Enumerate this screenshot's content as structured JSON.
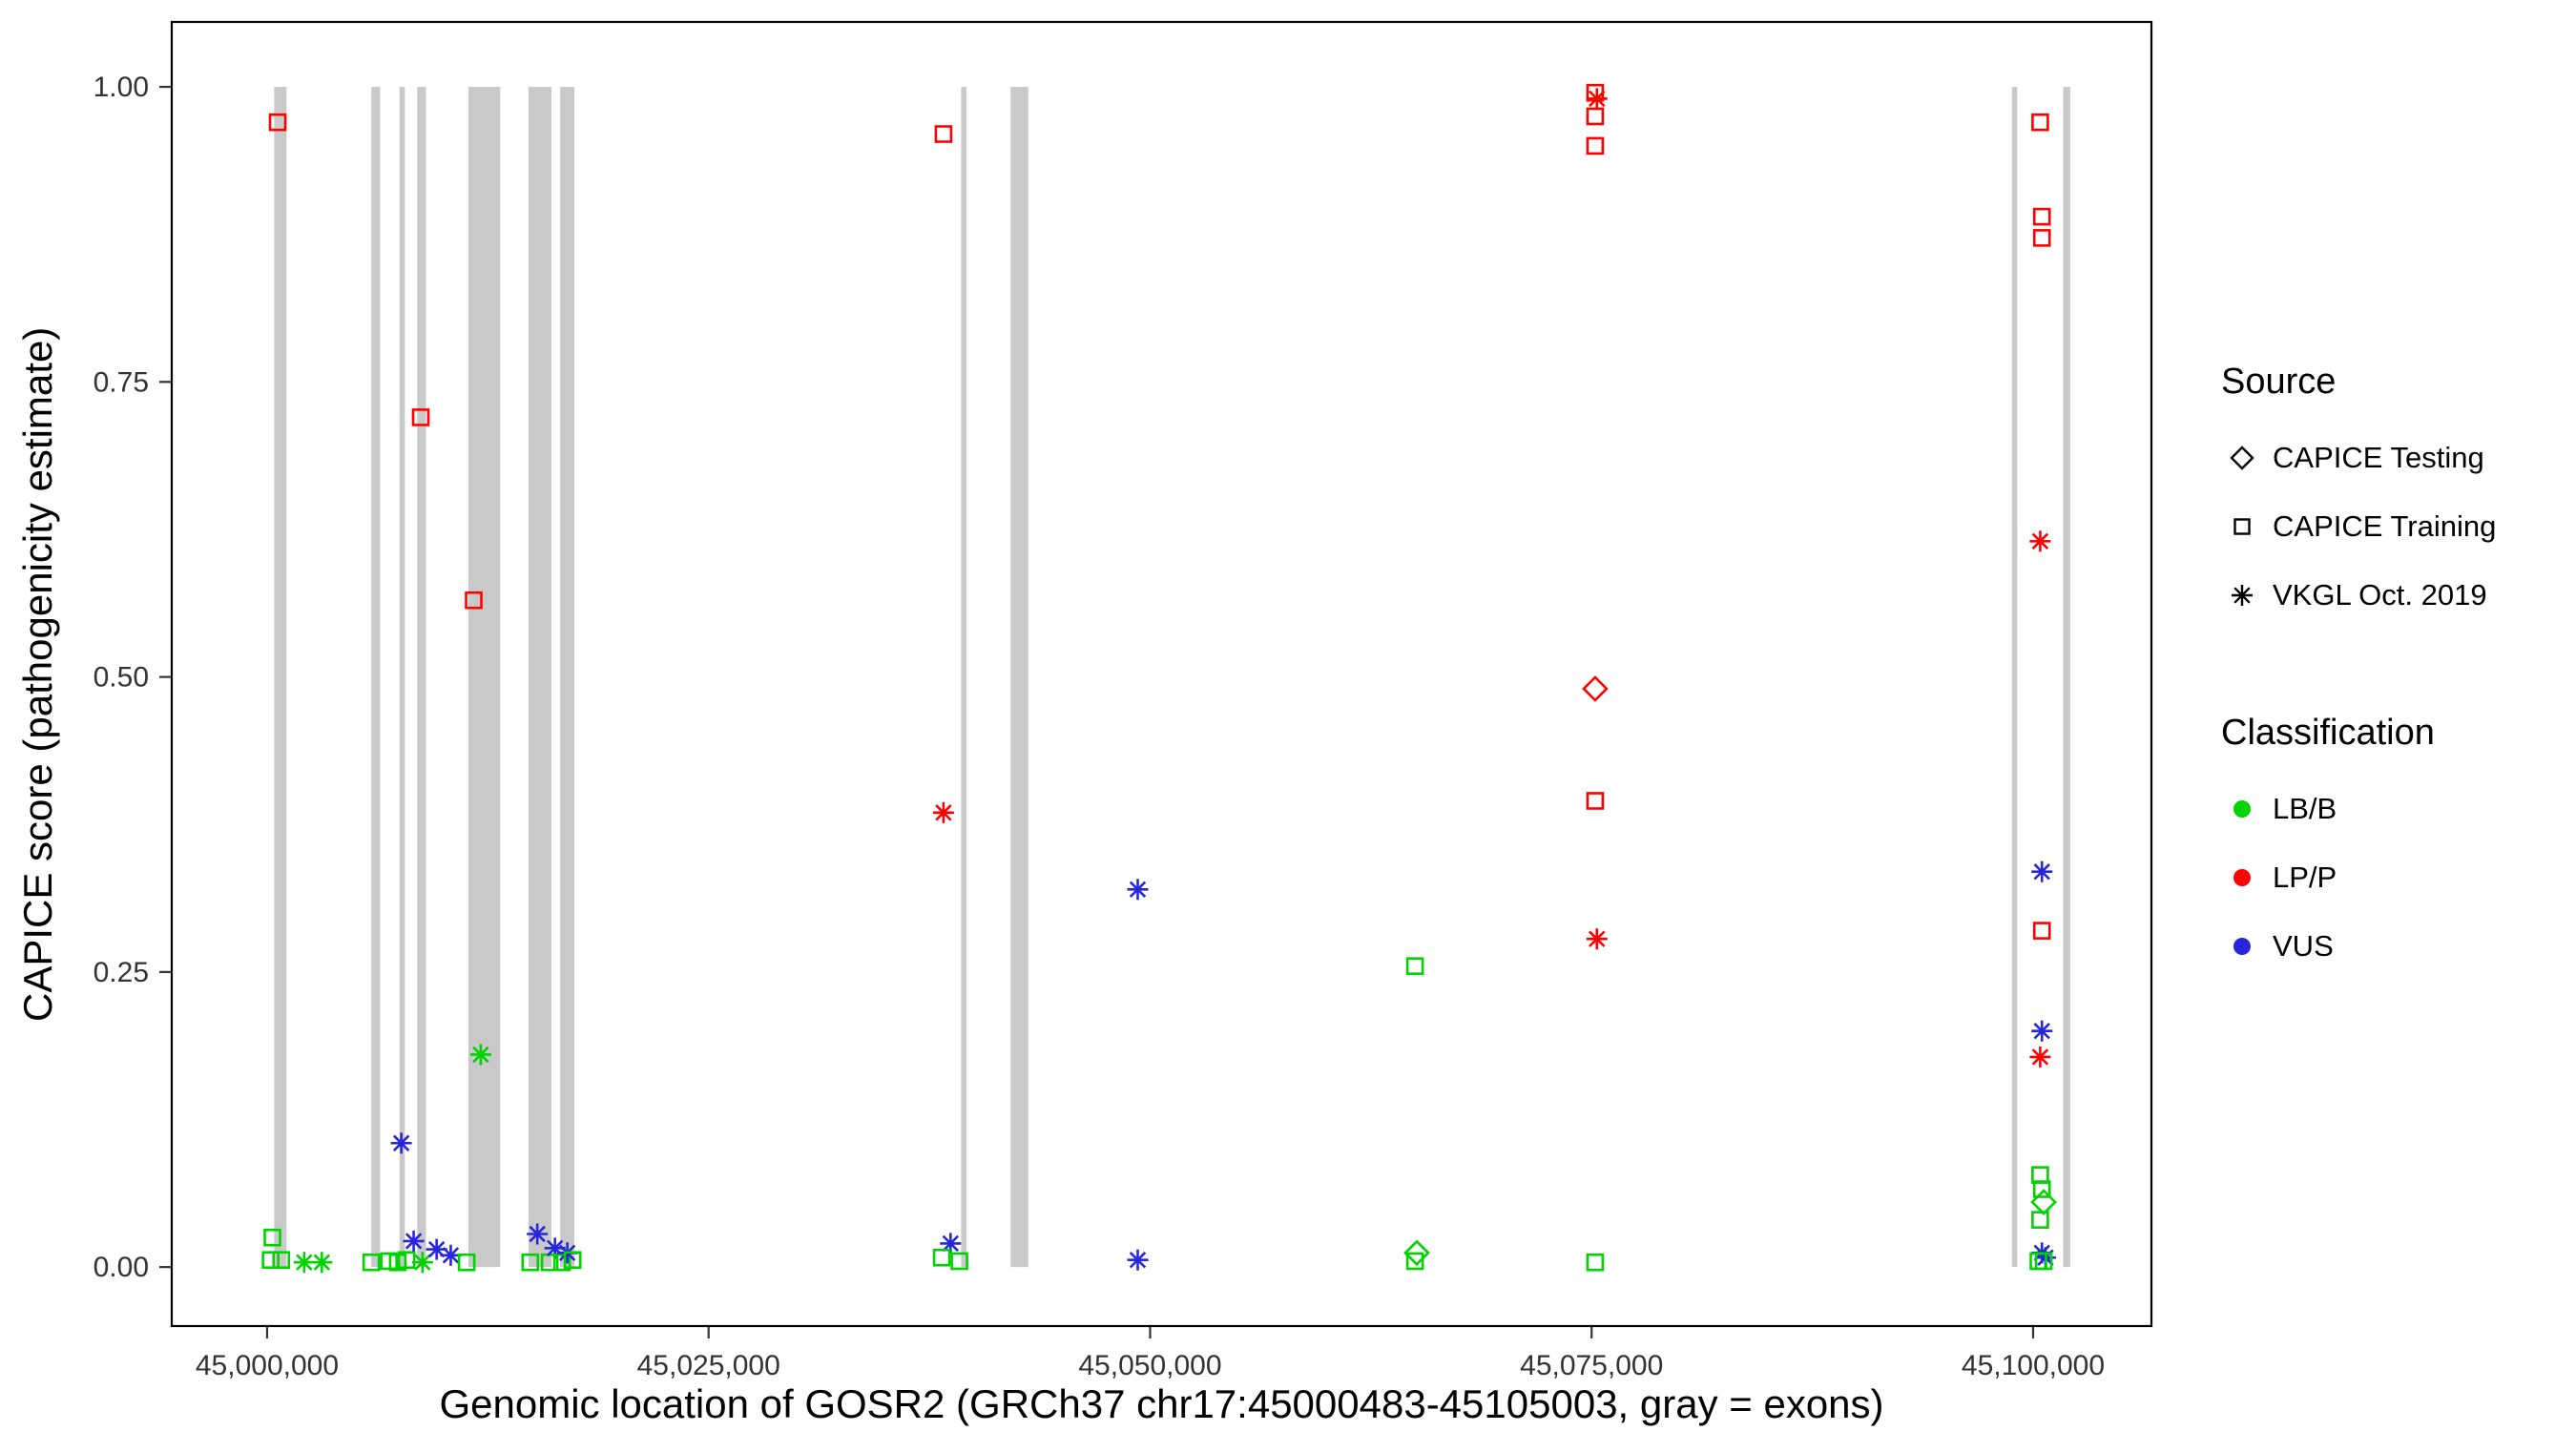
{
  "figure": {
    "background": "#FFFFFF",
    "panel_border_color": "#000000",
    "tick_text_color": "#333333"
  },
  "legend": {
    "source": {
      "title": "Source",
      "items": [
        {
          "label": "CAPICE Testing",
          "shape": "diamond"
        },
        {
          "label": "CAPICE Training",
          "shape": "square"
        },
        {
          "label": "VKGL Oct. 2019",
          "shape": "asterisk"
        }
      ]
    },
    "classification": {
      "title": "Classification",
      "items": [
        {
          "label": "LB/B",
          "color": "#00D300"
        },
        {
          "label": "LP/P",
          "color": "#FF0000"
        },
        {
          "label": "VUS",
          "color": "#2626DD"
        }
      ]
    }
  },
  "chart_data": {
    "type": "scatter",
    "title": "",
    "xlabel": "Genomic location of GOSR2 (GRCh37 chr17:45000483-45105003, gray = exons)",
    "ylabel": "CAPICE score (pathogenicity estimate)",
    "xlim": [
      44994600,
      45106700
    ],
    "ylim": [
      -0.05,
      1.055
    ],
    "x_ticks": [
      45000000,
      45025000,
      45050000,
      45075000,
      45100000
    ],
    "x_tick_labels": [
      "45,000,000",
      "45,025,000",
      "45,050,000",
      "45,075,000",
      "45,100,000"
    ],
    "y_ticks": [
      0.0,
      0.25,
      0.5,
      0.75,
      1.0
    ],
    "y_tick_labels": [
      "0.00",
      "0.25",
      "0.50",
      "0.75",
      "1.00"
    ],
    "grid": false,
    "legend_position": "right",
    "exon_color": "#C9C9C9",
    "exons": [
      [
        45000400,
        45001100
      ],
      [
        45005900,
        45006400
      ],
      [
        45007500,
        45007800
      ],
      [
        45008500,
        45009000
      ],
      [
        45011400,
        45013200
      ],
      [
        45014800,
        45016100
      ],
      [
        45016600,
        45017400
      ],
      [
        45039300,
        45039600
      ],
      [
        45042100,
        45043100
      ],
      [
        45098800,
        45099100
      ],
      [
        45101700,
        45102100
      ]
    ],
    "colors": {
      "LB/B": "#00D300",
      "LP/P": "#FF0000",
      "VUS": "#2626DD"
    },
    "shapes": {
      "CAPICE Testing": "diamond",
      "CAPICE Training": "square",
      "VKGL Oct. 2019": "asterisk"
    },
    "points": [
      {
        "x": 45000600,
        "y": 0.97,
        "source": "CAPICE Training",
        "classification": "LP/P"
      },
      {
        "x": 45000300,
        "y": 0.025,
        "source": "CAPICE Training",
        "classification": "LB/B"
      },
      {
        "x": 45000200,
        "y": 0.006,
        "source": "CAPICE Training",
        "classification": "LB/B"
      },
      {
        "x": 45000800,
        "y": 0.006,
        "source": "CAPICE Training",
        "classification": "LB/B"
      },
      {
        "x": 45002100,
        "y": 0.004,
        "source": "VKGL Oct. 2019",
        "classification": "LB/B"
      },
      {
        "x": 45003100,
        "y": 0.004,
        "source": "VKGL Oct. 2019",
        "classification": "LB/B"
      },
      {
        "x": 45005900,
        "y": 0.004,
        "source": "CAPICE Training",
        "classification": "LB/B"
      },
      {
        "x": 45006900,
        "y": 0.005,
        "source": "CAPICE Training",
        "classification": "LB/B"
      },
      {
        "x": 45007400,
        "y": 0.004,
        "source": "CAPICE Training",
        "classification": "LB/B"
      },
      {
        "x": 45007600,
        "y": 0.105,
        "source": "VKGL Oct. 2019",
        "classification": "VUS"
      },
      {
        "x": 45007900,
        "y": 0.006,
        "source": "CAPICE Training",
        "classification": "LB/B"
      },
      {
        "x": 45008300,
        "y": 0.022,
        "source": "VKGL Oct. 2019",
        "classification": "VUS"
      },
      {
        "x": 45008700,
        "y": 0.72,
        "source": "CAPICE Training",
        "classification": "LP/P"
      },
      {
        "x": 45008800,
        "y": 0.004,
        "source": "VKGL Oct. 2019",
        "classification": "LB/B"
      },
      {
        "x": 45009600,
        "y": 0.015,
        "source": "VKGL Oct. 2019",
        "classification": "VUS"
      },
      {
        "x": 45010400,
        "y": 0.01,
        "source": "VKGL Oct. 2019",
        "classification": "VUS"
      },
      {
        "x": 45011300,
        "y": 0.004,
        "source": "CAPICE Training",
        "classification": "LB/B"
      },
      {
        "x": 45011700,
        "y": 0.565,
        "source": "CAPICE Training",
        "classification": "LP/P"
      },
      {
        "x": 45012100,
        "y": 0.18,
        "source": "VKGL Oct. 2019",
        "classification": "LB/B"
      },
      {
        "x": 45014900,
        "y": 0.004,
        "source": "CAPICE Training",
        "classification": "LB/B"
      },
      {
        "x": 45015300,
        "y": 0.028,
        "source": "VKGL Oct. 2019",
        "classification": "VUS"
      },
      {
        "x": 45016000,
        "y": 0.004,
        "source": "CAPICE Training",
        "classification": "LB/B"
      },
      {
        "x": 45016300,
        "y": 0.016,
        "source": "VKGL Oct. 2019",
        "classification": "VUS"
      },
      {
        "x": 45016700,
        "y": 0.004,
        "source": "CAPICE Training",
        "classification": "LB/B"
      },
      {
        "x": 45017000,
        "y": 0.012,
        "source": "VKGL Oct. 2019",
        "classification": "VUS"
      },
      {
        "x": 45017300,
        "y": 0.006,
        "source": "CAPICE Training",
        "classification": "LB/B"
      },
      {
        "x": 45038300,
        "y": 0.96,
        "source": "CAPICE Training",
        "classification": "LP/P"
      },
      {
        "x": 45038300,
        "y": 0.385,
        "source": "VKGL Oct. 2019",
        "classification": "LP/P"
      },
      {
        "x": 45038700,
        "y": 0.02,
        "source": "VKGL Oct. 2019",
        "classification": "VUS"
      },
      {
        "x": 45038200,
        "y": 0.008,
        "source": "CAPICE Training",
        "classification": "LB/B"
      },
      {
        "x": 45039200,
        "y": 0.005,
        "source": "CAPICE Training",
        "classification": "LB/B"
      },
      {
        "x": 45049300,
        "y": 0.32,
        "source": "VKGL Oct. 2019",
        "classification": "VUS"
      },
      {
        "x": 45049300,
        "y": 0.006,
        "source": "VKGL Oct. 2019",
        "classification": "VUS"
      },
      {
        "x": 45065000,
        "y": 0.255,
        "source": "CAPICE Training",
        "classification": "LB/B"
      },
      {
        "x": 45065100,
        "y": 0.012,
        "source": "CAPICE Testing",
        "classification": "LB/B"
      },
      {
        "x": 45065000,
        "y": 0.005,
        "source": "CAPICE Training",
        "classification": "LB/B"
      },
      {
        "x": 45075200,
        "y": 0.995,
        "source": "CAPICE Training",
        "classification": "LP/P"
      },
      {
        "x": 45075300,
        "y": 0.99,
        "source": "VKGL Oct. 2019",
        "classification": "LP/P"
      },
      {
        "x": 45075200,
        "y": 0.975,
        "source": "CAPICE Training",
        "classification": "LP/P"
      },
      {
        "x": 45075200,
        "y": 0.95,
        "source": "CAPICE Training",
        "classification": "LP/P"
      },
      {
        "x": 45075200,
        "y": 0.49,
        "source": "CAPICE Testing",
        "classification": "LP/P"
      },
      {
        "x": 45075200,
        "y": 0.395,
        "source": "CAPICE Training",
        "classification": "LP/P"
      },
      {
        "x": 45075300,
        "y": 0.278,
        "source": "VKGL Oct. 2019",
        "classification": "LP/P"
      },
      {
        "x": 45075200,
        "y": 0.004,
        "source": "CAPICE Training",
        "classification": "LB/B"
      },
      {
        "x": 45100400,
        "y": 0.97,
        "source": "CAPICE Training",
        "classification": "LP/P"
      },
      {
        "x": 45100500,
        "y": 0.89,
        "source": "CAPICE Training",
        "classification": "LP/P"
      },
      {
        "x": 45100500,
        "y": 0.872,
        "source": "CAPICE Training",
        "classification": "LP/P"
      },
      {
        "x": 45100400,
        "y": 0.615,
        "source": "VKGL Oct. 2019",
        "classification": "LP/P"
      },
      {
        "x": 45100500,
        "y": 0.335,
        "source": "VKGL Oct. 2019",
        "classification": "VUS"
      },
      {
        "x": 45100500,
        "y": 0.285,
        "source": "CAPICE Training",
        "classification": "LP/P"
      },
      {
        "x": 45100500,
        "y": 0.2,
        "source": "VKGL Oct. 2019",
        "classification": "VUS"
      },
      {
        "x": 45100400,
        "y": 0.178,
        "source": "VKGL Oct. 2019",
        "classification": "LP/P"
      },
      {
        "x": 45100400,
        "y": 0.078,
        "source": "CAPICE Training",
        "classification": "LB/B"
      },
      {
        "x": 45100500,
        "y": 0.066,
        "source": "CAPICE Training",
        "classification": "LB/B"
      },
      {
        "x": 45100600,
        "y": 0.055,
        "source": "CAPICE Testing",
        "classification": "LB/B"
      },
      {
        "x": 45100400,
        "y": 0.04,
        "source": "CAPICE Training",
        "classification": "LB/B"
      },
      {
        "x": 45100500,
        "y": 0.012,
        "source": "VKGL Oct. 2019",
        "classification": "VUS"
      },
      {
        "x": 45100700,
        "y": 0.008,
        "source": "VKGL Oct. 2019",
        "classification": "VUS"
      },
      {
        "x": 45100300,
        "y": 0.005,
        "source": "CAPICE Training",
        "classification": "LB/B"
      },
      {
        "x": 45100600,
        "y": 0.005,
        "source": "CAPICE Training",
        "classification": "LB/B"
      }
    ]
  }
}
